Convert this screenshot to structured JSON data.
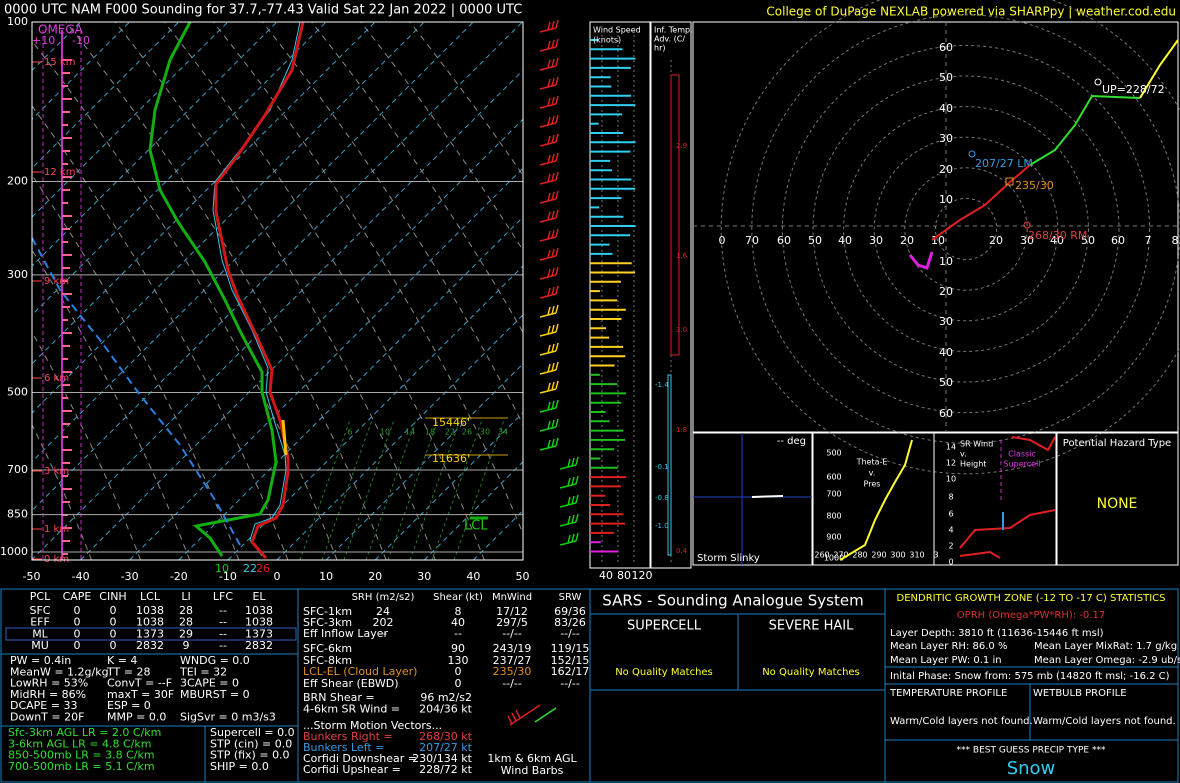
{
  "header": {
    "left": "0000 UTC NAM F000 Sounding for 37.7,-77.43  Valid  Sat 22 Jan 2022 | 0000 UTC",
    "right": "College of DuPage NEXLAB powered via SHARPpy | weather.cod.edu"
  },
  "skewt": {
    "pressure_labels": [
      100,
      200,
      300,
      500,
      700,
      850,
      1000
    ],
    "temperature_labels": [
      -50,
      -40,
      -30,
      -20,
      -10,
      0,
      10,
      20,
      30,
      40,
      50
    ],
    "height_labels": [
      "15 km",
      "12 km",
      "9 km",
      "6 km",
      "3 km",
      "1 km",
      "0 km"
    ],
    "omega": {
      "title": "OMEGA",
      "left": "+10",
      "right": "-10"
    },
    "mixing_ratio_labels": [
      6,
      10,
      14,
      18,
      22,
      26,
      30,
      34
    ],
    "dgz_top": "15446'",
    "dgz_bottom": "11636'",
    "lcl": "LCL",
    "surface": {
      "dewpoint": "10",
      "wetbulb": "22",
      "temperature": "26"
    }
  },
  "wind_speed": {
    "title": [
      "Wind Speed",
      "(knots)"
    ],
    "ticks": [
      40,
      80,
      120
    ]
  },
  "temp_advection": {
    "title": [
      "Inf. Temp.",
      "Adv. (C/",
      "hr)"
    ],
    "labels": [
      "2.9",
      "1.6",
      "3.0",
      "-1.4",
      "1.8",
      "-0.1",
      "-0.8",
      "-1.0",
      "0.4"
    ]
  },
  "hodograph": {
    "x_labels_left": [
      "0",
      "70",
      "60",
      "50",
      "40",
      "30",
      "20",
      "10"
    ],
    "x_labels_right": [
      "20",
      "30",
      "40",
      "50",
      "60",
      "7",
      "8"
    ],
    "y_labels": [
      "60",
      "50",
      "40",
      "30",
      "20",
      "10",
      "10",
      "20",
      "30",
      "40",
      "50",
      "60"
    ],
    "annotations": {
      "upshear": "UP=228/72",
      "left_mover": "207/27 LM",
      "mean": "235/30",
      "right_mover": "268/30 RM"
    }
  },
  "storm_slinky": {
    "deg": "-- deg",
    "title": "Storm Slinky"
  },
  "theta_e": {
    "title": [
      "Theta-E",
      "v.",
      "Pres"
    ],
    "pressure_ticks": [
      500,
      600,
      700,
      800,
      900,
      1000
    ],
    "theta_ticks": [
      "260",
      "270",
      "280",
      "290",
      "300",
      "310",
      "3"
    ]
  },
  "sr_wind": {
    "title": [
      "SR Wind",
      "v.",
      "Height"
    ],
    "supercell": [
      "Classic",
      "Supercell"
    ],
    "height_ticks": [
      14,
      12,
      10,
      8,
      6,
      4,
      2,
      0
    ]
  },
  "hazard": {
    "title": "Potential Hazard Type",
    "value": "NONE"
  },
  "parcels": {
    "header": [
      "PCL",
      "CAPE",
      "CINH",
      "LCL",
      "LI",
      "LFC",
      "EL"
    ],
    "rows": [
      [
        "SFC",
        0,
        0,
        1038,
        28,
        "--",
        1038
      ],
      [
        "EFF",
        0,
        0,
        1038,
        28,
        "--",
        1038
      ],
      [
        "ML",
        0,
        0,
        1373,
        29,
        "--",
        1373
      ],
      [
        "MU",
        0,
        0,
        2832,
        9,
        "--",
        2832
      ]
    ]
  },
  "indices": [
    [
      "PW = 0.4in",
      "K = 4",
      "WNDG = 0.0"
    ],
    [
      "MeanW = 1.2g/kg",
      "TT = 28",
      "TEI = 32"
    ],
    [
      "LowRH = 53%",
      "ConvT = --F",
      "3CAPE = 0"
    ],
    [
      "MidRH = 86%",
      "maxT = 30F",
      "MBURST = 0"
    ],
    [
      "DCAPE = 33",
      "ESP = 0"
    ],
    [
      "DownT = 20F",
      "MMP = 0.0",
      "SigSvr = 0 m3/s3"
    ]
  ],
  "lapse_rates": [
    "Sfc-3km AGL LR = 2.0 C/km",
    "3-6km AGL LR = 4.8 C/km",
    "850-500mb LR = 3.8 C/km",
    "700-500mb LR = 5.1 C/km"
  ],
  "composites": [
    "Supercell = 0.0",
    "STP (cin) = 0.0",
    "STP (fix) = 0.0",
    "SHIP = 0.0"
  ],
  "kinematics": {
    "header": [
      "SRH (m2/s2)",
      "Shear (kt)",
      "MnWind",
      "SRW"
    ],
    "rows": [
      [
        "SFC-1km",
        24,
        8,
        "17/12",
        "69/36"
      ],
      [
        "SFC-3km",
        202,
        40,
        "297/5",
        "83/26"
      ],
      [
        "Eff Inflow Layer",
        "--",
        "--",
        "--/--",
        "--/--"
      ],
      [
        "SFC-6km",
        null,
        90,
        "243/19",
        "119/15"
      ],
      [
        "SFC-8km",
        null,
        130,
        "237/27",
        "152/15"
      ],
      [
        "LCL-EL (Cloud Layer)",
        null,
        0,
        "235/30",
        "162/17"
      ],
      [
        "Eff Shear (EBWD)",
        null,
        0,
        "--/--",
        "--/--"
      ]
    ],
    "misc": [
      [
        "BRN Shear =",
        "96 m2/s2"
      ],
      [
        "4-6km SR Wind =",
        "204/36 kt"
      ]
    ],
    "storm_motion_title": "...Storm Motion Vectors...",
    "storm_motion": [
      [
        "Bunkers Right =",
        "268/30 kt"
      ],
      [
        "Bunkers Left =",
        "207/27 kt"
      ],
      [
        "Corfidi Downshear =",
        "230/134 kt"
      ],
      [
        "Corfidi Upshear =",
        "228/72 kt"
      ]
    ],
    "barb_caption": [
      "1km & 6km AGL",
      "Wind Barbs"
    ]
  },
  "sars": {
    "title": "SARS - Sounding Analogue System",
    "supercell": "SUPERCELL",
    "hail": "SEVERE HAIL",
    "supercell_result": "No Quality Matches",
    "hail_result": "No Quality Matches"
  },
  "dgz": {
    "title": "DENDRITIC GROWTH ZONE (-12 TO -17 C) STATISTICS",
    "oprh": "OPRH (Omega*PW*RH): -0.17",
    "depth": "Layer Depth: 3810 ft (11636-15446 ft msl)",
    "rh": "Mean Layer RH: 86.0 %",
    "mixrat": "Mean Layer MixRat: 1.7 g/kg",
    "pw": "Mean Layer PW: 0.1 in",
    "omega": "Mean Layer Omega: -2.9 ub/s",
    "phase": "Inital Phase: Snow from: 575 mb (14820 ft msl; -16.2 C)",
    "temp_profile": "TEMPERATURE PROFILE",
    "wetbulb_profile": "WETBULB PROFILE",
    "temp_result": "Warm/Cold layers not found.",
    "wetbulb_result": "Warm/Cold layers not found.",
    "precip_title": "*** BEST GUESS PRECIP TYPE ***",
    "precip": "Snow"
  }
}
